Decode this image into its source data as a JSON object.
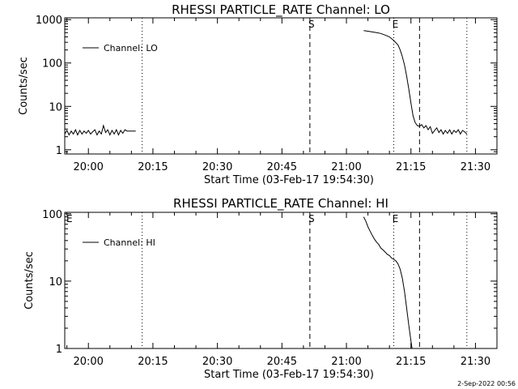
{
  "footer_date": "2-Sep-2022 00:56",
  "chart_data": [
    {
      "type": "line",
      "title": "RHESSI PARTICLE_RATE Channel: LO",
      "xlabel": "Start Time (03-Feb-17 19:54:30)",
      "ylabel": "Counts/sec",
      "yscale": "log",
      "xlim": [
        "19:54:30",
        "21:35:00"
      ],
      "ylim": [
        0.8,
        1100
      ],
      "x_ticks": [
        "20:00",
        "20:15",
        "20:30",
        "20:45",
        "21:00",
        "21:15",
        "21:30"
      ],
      "y_ticks": [
        {
          "value": 1,
          "label": "1"
        },
        {
          "value": 10,
          "label": "10"
        },
        {
          "value": 100,
          "label": "100"
        },
        {
          "value": 1000,
          "label": "1000"
        }
      ],
      "legend": {
        "position": "top-left",
        "label": "Channel: LO"
      },
      "vlines": [
        {
          "x": "20:12:30",
          "style": "dotted",
          "label": ""
        },
        {
          "x": "20:51:30",
          "style": "dashed",
          "label": "S"
        },
        {
          "x": "21:11:00",
          "style": "dotted",
          "label": "E"
        },
        {
          "x": "21:17:00",
          "style": "dashed",
          "label": ""
        },
        {
          "x": "21:28:00",
          "style": "dotted",
          "label": ""
        }
      ],
      "corner_marker": "",
      "series": [
        {
          "name": "Channel: LO",
          "segments": [
            {
              "x": [
                "19:54:30",
                "19:55:00",
                "19:55:30",
                "19:56:00",
                "19:56:30",
                "19:57:00",
                "19:57:30",
                "19:58:00",
                "19:58:30",
                "19:59:00",
                "19:59:30",
                "20:00:00",
                "20:00:30",
                "20:01:00",
                "20:01:30",
                "20:02:00",
                "20:02:30",
                "20:03:00",
                "20:03:30",
                "20:04:00",
                "20:04:30",
                "20:05:00",
                "20:05:30",
                "20:06:00",
                "20:06:30",
                "20:07:00",
                "20:07:30",
                "20:08:00",
                "20:08:30",
                "20:09:00",
                "20:09:30",
                "20:10:00",
                "20:10:30",
                "20:11:00"
              ],
              "y": [
                2.3,
                2.8,
                2.2,
                2.7,
                2.3,
                2.9,
                2.2,
                2.8,
                2.3,
                2.7,
                2.4,
                2.8,
                2.3,
                2.6,
                2.9,
                2.2,
                2.7,
                2.3,
                3.6,
                2.5,
                2.9,
                2.2,
                2.8,
                2.3,
                2.9,
                2.2,
                2.8,
                2.4,
                2.9,
                2.7,
                2.7,
                2.7,
                2.7,
                2.7
              ]
            },
            {
              "x": [
                "21:04:00",
                "21:05:00",
                "21:06:00",
                "21:07:00",
                "21:08:00",
                "21:09:00",
                "21:10:00",
                "21:11:00",
                "21:12:00",
                "21:12:30",
                "21:13:00",
                "21:13:30",
                "21:14:00",
                "21:14:30",
                "21:15:00",
                "21:15:30",
                "21:16:00",
                "21:16:30",
                "21:17:00",
                "21:17:30",
                "21:18:00",
                "21:18:30",
                "21:19:00",
                "21:19:30",
                "21:20:00",
                "21:20:30",
                "21:21:00",
                "21:21:30",
                "21:22:00",
                "21:22:30",
                "21:23:00",
                "21:23:30",
                "21:24:00",
                "21:24:30",
                "21:25:00",
                "21:25:30",
                "21:26:00",
                "21:26:30",
                "21:27:00",
                "21:27:30",
                "21:28:00"
              ],
              "y": [
                560,
                540,
                520,
                500,
                480,
                440,
                400,
                330,
                260,
                200,
                140,
                90,
                50,
                25,
                12,
                6,
                4.2,
                3.6,
                3.5,
                3.8,
                3.2,
                3.6,
                2.9,
                3.4,
                2.4,
                2.8,
                3.2,
                2.5,
                2.9,
                2.3,
                2.8,
                2.4,
                2.9,
                2.3,
                2.8,
                2.5,
                2.9,
                2.3,
                2.8,
                2.6,
                2.3
              ]
            }
          ]
        }
      ]
    },
    {
      "type": "line",
      "title": "RHESSI PARTICLE_RATE Channel: HI",
      "xlabel": "Start Time (03-Feb-17 19:54:30)",
      "ylabel": "Counts/sec",
      "yscale": "log",
      "xlim": [
        "19:54:30",
        "21:35:00"
      ],
      "ylim": [
        1,
        105
      ],
      "x_ticks": [
        "20:00",
        "20:15",
        "20:30",
        "20:45",
        "21:00",
        "21:15",
        "21:30"
      ],
      "y_ticks": [
        {
          "value": 1,
          "label": "1"
        },
        {
          "value": 10,
          "label": "10"
        },
        {
          "value": 100,
          "label": "100"
        }
      ],
      "legend": {
        "position": "top-left",
        "label": "Channel: HI"
      },
      "vlines": [
        {
          "x": "20:12:30",
          "style": "dotted",
          "label": ""
        },
        {
          "x": "20:51:30",
          "style": "dashed",
          "label": "S"
        },
        {
          "x": "21:11:00",
          "style": "dotted",
          "label": "E"
        },
        {
          "x": "21:17:00",
          "style": "dashed",
          "label": ""
        },
        {
          "x": "21:28:00",
          "style": "dotted",
          "label": ""
        }
      ],
      "corner_marker": "E",
      "series": [
        {
          "name": "Channel: HI",
          "segments": [
            {
              "x": [
                "21:04:00",
                "21:04:30",
                "21:05:00",
                "21:05:30",
                "21:06:00",
                "21:06:30",
                "21:07:00",
                "21:07:30",
                "21:08:00",
                "21:08:30",
                "21:09:00",
                "21:09:30",
                "21:10:00",
                "21:10:30",
                "21:11:00",
                "21:11:30",
                "21:12:00",
                "21:12:30",
                "21:13:00",
                "21:13:30",
                "21:14:00",
                "21:14:30",
                "21:15:00",
                "21:15:15"
              ],
              "y": [
                90,
                78,
                64,
                55,
                48,
                42,
                38,
                35,
                31,
                29,
                27,
                25,
                24,
                22,
                21,
                20,
                18,
                15,
                11,
                7,
                4,
                2.2,
                1.3,
                1
              ]
            }
          ]
        }
      ]
    }
  ]
}
